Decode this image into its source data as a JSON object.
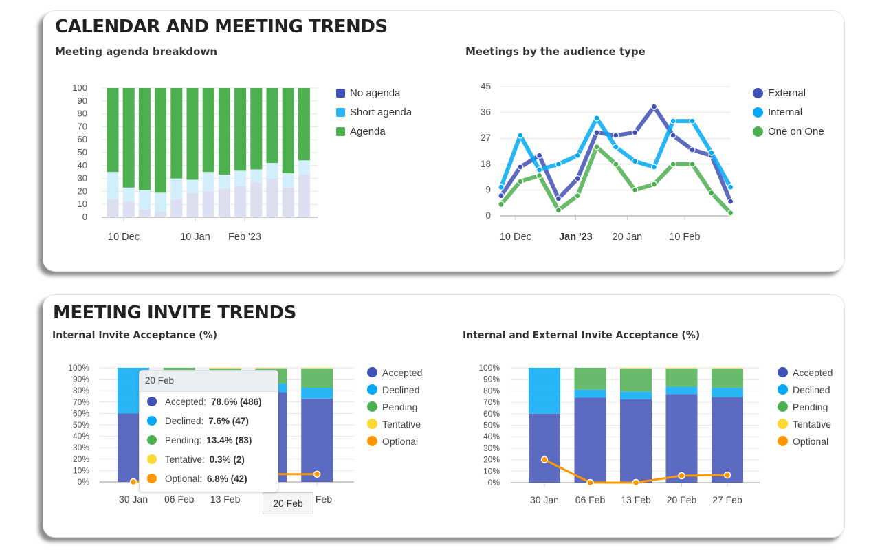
{
  "sections": {
    "calendar": {
      "title": "CALENDAR AND MEETING TRENDS"
    },
    "invites": {
      "title": "MEETING INVITE TRENDS"
    }
  },
  "chart_data": [
    {
      "id": "agenda",
      "type": "bar",
      "stacked": true,
      "title": "Meeting agenda breakdown",
      "ylim": [
        0,
        100
      ],
      "yticks": [
        "0",
        "10",
        "20",
        "30",
        "40",
        "50",
        "60",
        "70",
        "80",
        "90",
        "100"
      ],
      "xtick_labels": [
        "10 Dec",
        "10 Jan",
        "Feb '23"
      ],
      "xtick_after_bar": [
        1,
        5,
        8
      ],
      "grid": true,
      "legend_position": "right",
      "series": [
        {
          "name": "No agenda",
          "color": "#3f51b5",
          "values": [
            14,
            12,
            6,
            4,
            14,
            19,
            20,
            22,
            24,
            27,
            30,
            23,
            33
          ]
        },
        {
          "name": "Short agenda",
          "color": "#29b6f6",
          "values": [
            21,
            11,
            15,
            15,
            16,
            10,
            15,
            11,
            12,
            10,
            12,
            11,
            11
          ]
        },
        {
          "name": "Agenda",
          "color": "#4caf50",
          "values": [
            65,
            77,
            79,
            81,
            70,
            71,
            65,
            67,
            64,
            63,
            58,
            66,
            56
          ]
        }
      ]
    },
    {
      "id": "audience",
      "type": "line",
      "title": "Meetings by the audience type",
      "ylim": [
        0,
        45
      ],
      "yticks": [
        "0",
        "9",
        "18",
        "27",
        "36",
        "45"
      ],
      "xtick_labels": [
        "10 Dec",
        "Jan '23",
        "20 Jan",
        "10 Feb"
      ],
      "xtick_positions": [
        0.75,
        3.9,
        6.6,
        9.6
      ],
      "grid": true,
      "legend_position": "right",
      "series": [
        {
          "name": "External",
          "color": "#3f51b5",
          "values": [
            7,
            17,
            21,
            6,
            13,
            29,
            28,
            29,
            38,
            28,
            23,
            21,
            5
          ]
        },
        {
          "name": "Internal",
          "color": "#03a9f4",
          "values": [
            10,
            28,
            16,
            18,
            21,
            34,
            24,
            19,
            17,
            33,
            33,
            22,
            10
          ]
        },
        {
          "name": "One on One",
          "color": "#4caf50",
          "values": [
            4,
            12,
            14,
            2,
            7,
            24,
            18,
            9,
            11,
            18,
            18,
            8,
            1
          ]
        }
      ]
    },
    {
      "id": "internal_acceptance",
      "type": "bar",
      "stacked": true,
      "title": "Internal Invite Acceptance (%)",
      "ylim": [
        0,
        100
      ],
      "yticks": [
        "0%",
        "10%",
        "20%",
        "30%",
        "40%",
        "50%",
        "60%",
        "70%",
        "80%",
        "90%",
        "100%"
      ],
      "categories": [
        "30 Jan",
        "06 Feb",
        "13 Feb",
        "20 Feb",
        "27 Feb"
      ],
      "grid": true,
      "legend_position": "right",
      "series": [
        {
          "name": "Accepted",
          "color": "#3f51b5",
          "values": [
            60,
            76,
            74,
            78.6,
            73
          ]
        },
        {
          "name": "Declined",
          "color": "#03a9f4",
          "values": [
            40,
            6,
            6.5,
            7.6,
            9.5
          ]
        },
        {
          "name": "Pending",
          "color": "#4caf50",
          "values": [
            0,
            18,
            19,
            13.4,
            17
          ]
        },
        {
          "name": "Tentative",
          "color": "#fdd835",
          "values": [
            0,
            0,
            0.5,
            0.3,
            0.5
          ]
        }
      ],
      "line_series": {
        "name": "Optional",
        "color": "#ff9800",
        "values": [
          0,
          2,
          4,
          6.8,
          6.8
        ]
      },
      "tooltip": {
        "header": "20 Feb",
        "axis_label": "20 Feb",
        "rows": [
          {
            "label": "Accepted:",
            "value": "78.6% (486)",
            "color": "#3f51b5"
          },
          {
            "label": "Declined:",
            "value": "7.6% (47)",
            "color": "#03a9f4"
          },
          {
            "label": "Pending:",
            "value": "13.4% (83)",
            "color": "#4caf50"
          },
          {
            "label": "Tentative:",
            "value": "0.3% (2)",
            "color": "#fdd835"
          },
          {
            "label": "Optional:",
            "value": "6.8% (42)",
            "color": "#ff9800"
          }
        ]
      }
    },
    {
      "id": "int_ext_acceptance",
      "type": "bar",
      "stacked": true,
      "title": "Internal and External Invite Acceptance (%)",
      "ylim": [
        0,
        100
      ],
      "yticks": [
        "0%",
        "10%",
        "20%",
        "30%",
        "40%",
        "50%",
        "60%",
        "70%",
        "80%",
        "90%",
        "100%"
      ],
      "categories": [
        "30 Jan",
        "06 Feb",
        "13 Feb",
        "20 Feb",
        "27 Feb"
      ],
      "grid": true,
      "legend_position": "right",
      "series": [
        {
          "name": "Accepted",
          "color": "#3f51b5",
          "values": [
            60,
            74,
            72.5,
            77,
            74.5
          ]
        },
        {
          "name": "Declined",
          "color": "#03a9f4",
          "values": [
            40,
            7,
            7,
            6.5,
            8
          ]
        },
        {
          "name": "Pending",
          "color": "#4caf50",
          "values": [
            0,
            19,
            20,
            16,
            17
          ]
        },
        {
          "name": "Tentative",
          "color": "#fdd835",
          "values": [
            0,
            0,
            0.5,
            0.5,
            0.5
          ]
        }
      ],
      "line_series": {
        "name": "Optional",
        "color": "#ff9800",
        "values": [
          20,
          0,
          0,
          6,
          6.5
        ]
      }
    }
  ]
}
